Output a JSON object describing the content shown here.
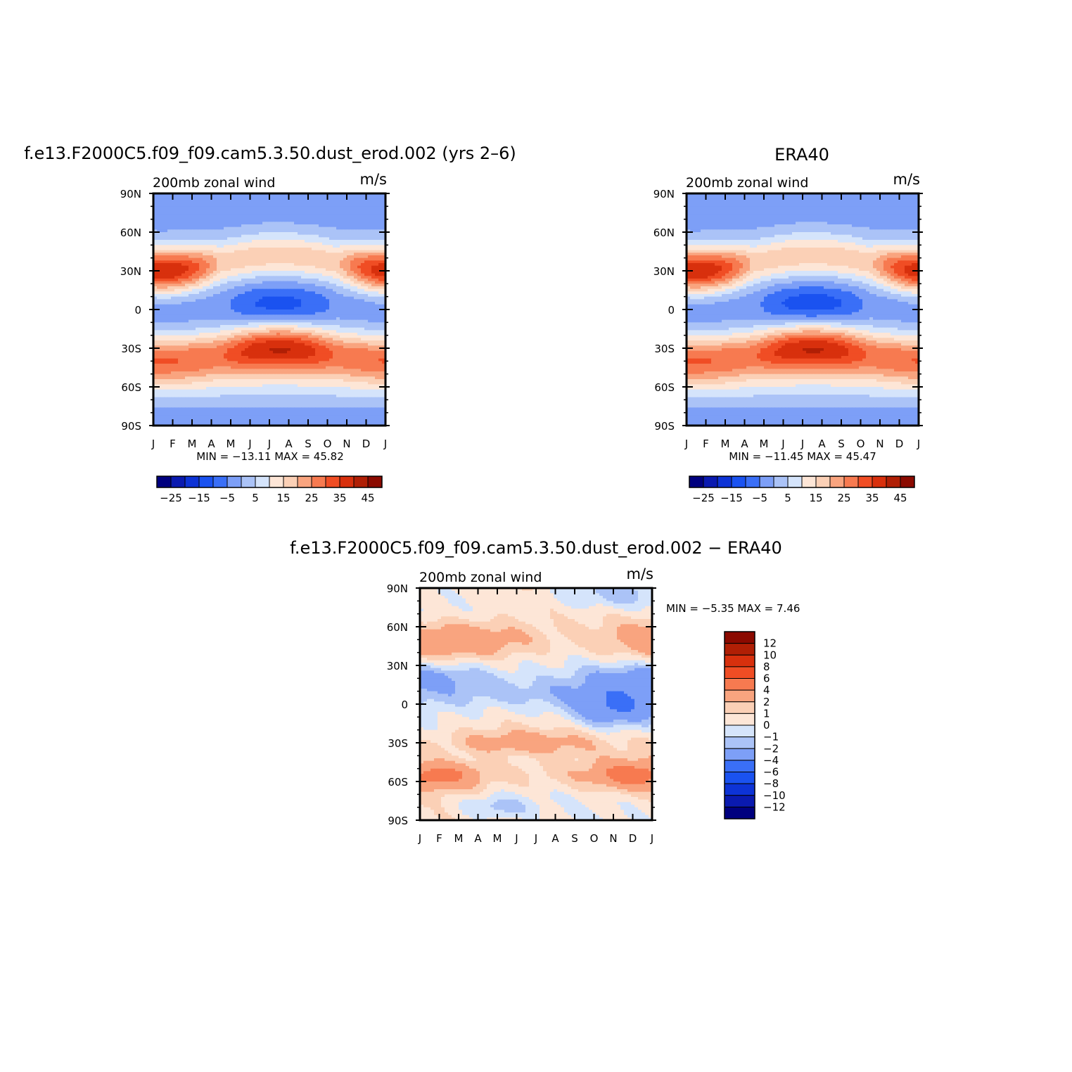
{
  "chart_data": [
    {
      "type": "heatmap",
      "id": "model",
      "title": "f.e13.F2000C5.f09_f09.cam5.3.50.dust_erod.002 (yrs 2–6)",
      "left_label": "200mb  zonal  wind",
      "right_label": "m/s",
      "stats": "MIN = −13.11  MAX =    45.82",
      "x_ticks": [
        "J",
        "F",
        "M",
        "A",
        "M",
        "J",
        "J",
        "A",
        "S",
        "O",
        "N",
        "D",
        "J"
      ],
      "y_ticks": [
        "90N",
        "60N",
        "30N",
        "0",
        "30S",
        "60S",
        "90S"
      ],
      "colorbar_labels": [
        "−25",
        "−15",
        "−5",
        "5",
        "15",
        "25",
        "35",
        "45"
      ],
      "levels": [
        -25,
        -20,
        -15,
        -10,
        -5,
        0,
        5,
        10,
        15,
        20,
        25,
        30,
        35,
        40,
        45
      ],
      "min": -13.11,
      "max": 45.82
    },
    {
      "type": "heatmap",
      "id": "obs",
      "title": "ERA40",
      "left_label": "200mb  zonal  wind",
      "right_label": "m/s",
      "stats": "MIN = −11.45  MAX =    45.47",
      "x_ticks": [
        "J",
        "F",
        "M",
        "A",
        "M",
        "J",
        "J",
        "A",
        "S",
        "O",
        "N",
        "D",
        "J"
      ],
      "y_ticks": [
        "90N",
        "60N",
        "30N",
        "0",
        "30S",
        "60S",
        "90S"
      ],
      "colorbar_labels": [
        "−25",
        "−15",
        "−5",
        "5",
        "15",
        "25",
        "35",
        "45"
      ],
      "levels": [
        -25,
        -20,
        -15,
        -10,
        -5,
        0,
        5,
        10,
        15,
        20,
        25,
        30,
        35,
        40,
        45
      ],
      "min": -11.45,
      "max": 45.47
    },
    {
      "type": "heatmap",
      "id": "diff",
      "title": "f.e13.F2000C5.f09_f09.cam5.3.50.dust_erod.002 − ERA40",
      "left_label": "200mb  zonal  wind",
      "right_label": "m/s",
      "stats": "MIN =   −5.35  MAX =    7.46",
      "x_ticks": [
        "J",
        "F",
        "M",
        "A",
        "M",
        "J",
        "J",
        "A",
        "S",
        "O",
        "N",
        "D",
        "J"
      ],
      "y_ticks": [
        "90N",
        "60N",
        "30N",
        "0",
        "30S",
        "60S",
        "90S"
      ],
      "colorbar_labels": [
        "12",
        "10",
        "8",
        "6",
        "4",
        "2",
        "1",
        "0",
        "−1",
        "−2",
        "−4",
        "−6",
        "−8",
        "−10",
        "−12"
      ],
      "levels": [
        -12,
        -10,
        -8,
        -6,
        -4,
        -2,
        -1,
        0,
        1,
        2,
        4,
        6,
        8,
        10,
        12
      ],
      "min": -5.35,
      "max": 7.46
    }
  ],
  "palette": [
    "#00007f",
    "#0a1ab0",
    "#0d33d6",
    "#1a52f0",
    "#3a6ff7",
    "#7d9ff7",
    "#abc3f7",
    "#d5e4fb",
    "#fde6d7",
    "#fbd0b6",
    "#f9a47f",
    "#f77a50",
    "#f04d24",
    "#d8300d",
    "#b01f05",
    "#8b0a00"
  ]
}
